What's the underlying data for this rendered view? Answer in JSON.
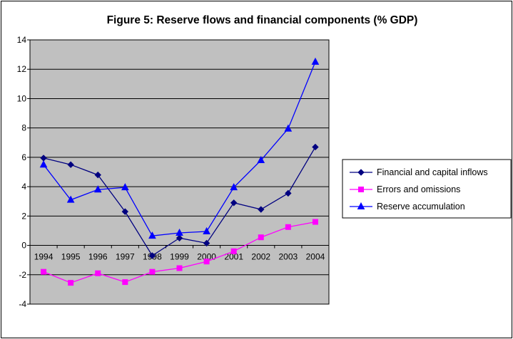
{
  "chart_data": {
    "type": "line",
    "title": "Figure 5: Reserve flows and financial components (% GDP)",
    "x": [
      "1994",
      "1995",
      "1996",
      "1997",
      "1998",
      "1999",
      "2000",
      "2001",
      "2002",
      "2003",
      "2004"
    ],
    "ylim": [
      -4,
      14
    ],
    "yticks": [
      -4,
      -2,
      0,
      2,
      4,
      6,
      8,
      10,
      12,
      14
    ],
    "grid": true,
    "legend_position": "right",
    "plot_background": "#c0c0c0",
    "series": [
      {
        "name": "Financial and capital inflows",
        "color": "#000080",
        "marker": "diamond",
        "values": [
          5.95,
          5.5,
          4.8,
          2.3,
          -0.7,
          0.5,
          0.15,
          2.9,
          2.45,
          3.55,
          6.7
        ]
      },
      {
        "name": "Errors and omissions",
        "color": "#ff00ff",
        "marker": "square",
        "values": [
          -1.8,
          -2.55,
          -1.9,
          -2.5,
          -1.8,
          -1.55,
          -1.1,
          -0.4,
          0.55,
          1.25,
          1.6
        ]
      },
      {
        "name": "Reserve accumulation",
        "color": "#0000ff",
        "marker": "triangle",
        "values": [
          5.5,
          3.1,
          3.8,
          3.95,
          0.65,
          0.85,
          0.95,
          3.95,
          5.8,
          7.95,
          12.5
        ]
      }
    ]
  }
}
